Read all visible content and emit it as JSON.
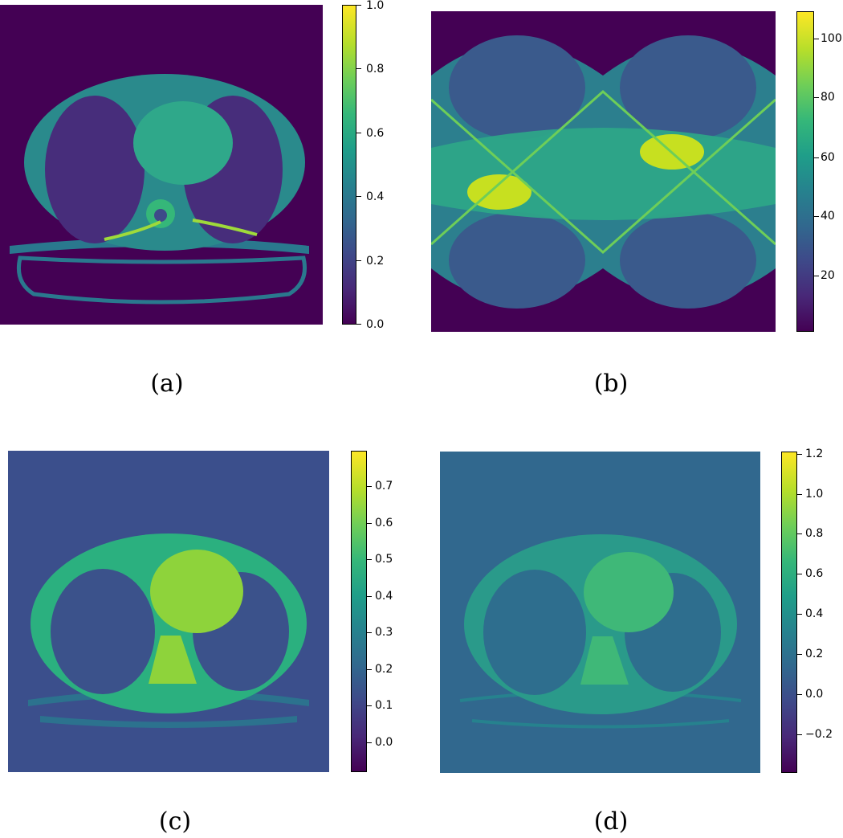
{
  "panels": [
    {
      "id": "a",
      "caption": "(a)",
      "image": "ct-slice-ground-truth",
      "colorbar": {
        "colormap": "viridis",
        "min": 0.0,
        "max": 1.0,
        "ticks": [
          "1.0",
          "0.8",
          "0.6",
          "0.4",
          "0.2",
          "0.0"
        ]
      }
    },
    {
      "id": "b",
      "caption": "(b)",
      "image": "sinogram",
      "colorbar": {
        "colormap": "viridis",
        "min": 0,
        "max": 110,
        "ticks": [
          "100",
          "80",
          "60",
          "40",
          "20"
        ]
      }
    },
    {
      "id": "c",
      "caption": "(c)",
      "image": "ct-reconstruction-smoothed",
      "colorbar": {
        "colormap": "viridis",
        "min": -0.08,
        "max": 0.8,
        "ticks": [
          "0.7",
          "0.6",
          "0.5",
          "0.4",
          "0.3",
          "0.2",
          "0.1",
          "0.0"
        ]
      }
    },
    {
      "id": "d",
      "caption": "(d)",
      "image": "ct-reconstruction-noisy",
      "colorbar": {
        "colormap": "viridis",
        "min": -0.38,
        "max": 1.22,
        "ticks": [
          "1.2",
          "1.0",
          "0.8",
          "0.6",
          "0.4",
          "0.2",
          "0.0",
          "−0.2"
        ]
      }
    }
  ]
}
